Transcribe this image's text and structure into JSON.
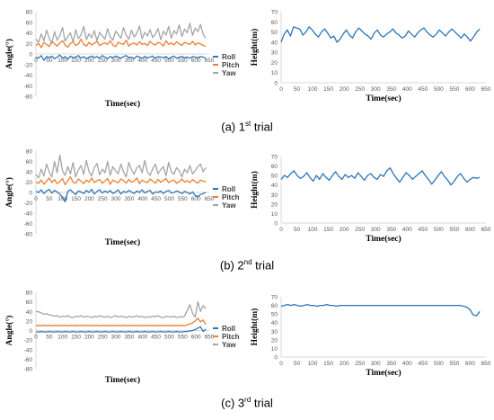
{
  "colors": {
    "roll": "#2E75B6",
    "pitch": "#ED7D31",
    "yaw": "#A5A5A5",
    "height": "#2E75B6",
    "axis": "#D9D9D9",
    "text": "#000000"
  },
  "captions": [
    {
      "label": "(a) 1",
      "sup": "st",
      "rest": " trial"
    },
    {
      "label": "(b) 2",
      "sup": "nd",
      "rest": " trial"
    },
    {
      "label": "(c) 3",
      "sup": "rd",
      "rest": " trial"
    }
  ],
  "chart_data": [
    {
      "id": "angle-1",
      "type": "line",
      "xlabel": "Time(sec)",
      "ylabel": "Angle(°)",
      "xlim": [
        0,
        650
      ],
      "ylim": [
        -80,
        80
      ],
      "xticks": [
        "0",
        "50",
        "100",
        "150",
        "200",
        "250",
        "300",
        "350",
        "400",
        "450",
        "500",
        "550",
        "600",
        "650"
      ],
      "yticks": [
        "80",
        "60",
        "40",
        "20",
        "0",
        "-20",
        "-40",
        "-60",
        "-80"
      ],
      "legend": [
        "Roll",
        "Pitch",
        "Yaw"
      ],
      "series": [
        {
          "name": "Roll",
          "values": [
            -6,
            -8,
            -3,
            -12,
            -5,
            -7,
            -4,
            -9,
            -6,
            -2,
            -8,
            -5,
            -10,
            -4,
            -7,
            -6,
            -3,
            -8,
            -5,
            -9,
            -6,
            -4,
            -7,
            -5,
            -8,
            -3,
            -6,
            -9,
            -5,
            -7,
            -4,
            -6,
            -8,
            -5,
            -3,
            -7,
            -6,
            -9,
            -4,
            -6,
            -8,
            -5,
            -7,
            -6,
            -4,
            -8,
            -5,
            -6,
            -7,
            -5,
            -9,
            -6,
            -4,
            -8,
            -6,
            -5,
            -7,
            -6,
            -8,
            -5,
            -6,
            -7,
            -5,
            -6,
            -8
          ]
        },
        {
          "name": "Pitch",
          "values": [
            16,
            20,
            12,
            22,
            18,
            14,
            24,
            19,
            15,
            21,
            25,
            17,
            13,
            20,
            23,
            16,
            19,
            28,
            18,
            15,
            22,
            17,
            20,
            24,
            16,
            19,
            21,
            18,
            25,
            17,
            14,
            22,
            20,
            18,
            26,
            15,
            19,
            21,
            17,
            23,
            18,
            20,
            16,
            24,
            19,
            17,
            22,
            20,
            15,
            25,
            18,
            21,
            17,
            23,
            19,
            16,
            22,
            20,
            18,
            24,
            17,
            21,
            19,
            16,
            14
          ]
        },
        {
          "name": "Yaw",
          "values": [
            28,
            22,
            38,
            25,
            45,
            30,
            20,
            42,
            26,
            35,
            50,
            24,
            33,
            40,
            22,
            46,
            29,
            36,
            52,
            27,
            38,
            31,
            44,
            25,
            41,
            34,
            28,
            48,
            32,
            26,
            43,
            37,
            30,
            50,
            35,
            28,
            45,
            32,
            39,
            53,
            29,
            41,
            34,
            46,
            31,
            38,
            48,
            27,
            43,
            36,
            52,
            30,
            44,
            38,
            55,
            33,
            47,
            40,
            58,
            35,
            49,
            42,
            56,
            37,
            30
          ]
        }
      ]
    },
    {
      "id": "height-1",
      "type": "line",
      "xlabel": "Time(sec)",
      "ylabel": "Height(m)",
      "xlim": [
        0,
        650
      ],
      "ylim": [
        0,
        70
      ],
      "xticks": [
        "0",
        "50",
        "100",
        "150",
        "200",
        "250",
        "300",
        "350",
        "400",
        "450",
        "500",
        "550",
        "600",
        "650"
      ],
      "yticks": [
        "70",
        "60",
        "50",
        "40",
        "30",
        "20",
        "10",
        "0"
      ],
      "series": [
        {
          "name": "",
          "values": [
            40,
            48,
            52,
            46,
            55,
            54,
            53,
            47,
            50,
            55,
            52,
            48,
            45,
            50,
            53,
            49,
            44,
            46,
            40,
            43,
            48,
            52,
            47,
            44,
            50,
            54,
            51,
            48,
            46,
            43,
            49,
            52,
            47,
            45,
            48,
            50,
            53,
            49,
            47,
            44,
            46,
            51,
            48,
            45,
            49,
            52,
            54,
            50,
            47,
            45,
            48,
            52,
            49,
            46,
            50,
            53,
            50,
            47,
            44,
            48,
            45,
            41,
            45,
            50,
            53
          ]
        }
      ]
    },
    {
      "id": "angle-2",
      "type": "line",
      "xlabel": "Time(sec)",
      "ylabel": "Angle(°)",
      "xlim": [
        0,
        650
      ],
      "ylim": [
        -80,
        80
      ],
      "xticks": [
        "0",
        "50",
        "100",
        "150",
        "200",
        "250",
        "300",
        "350",
        "400",
        "450",
        "500",
        "550",
        "600",
        "650"
      ],
      "yticks": [
        "80",
        "60",
        "40",
        "20",
        "0",
        "-20",
        "-40",
        "-60",
        "-80"
      ],
      "legend": [
        "Roll",
        "Pitch",
        "Yaw"
      ],
      "series": [
        {
          "name": "Roll",
          "values": [
            2,
            0,
            5,
            -2,
            3,
            6,
            -1,
            4,
            1,
            -3,
            -10,
            -18,
            2,
            5,
            0,
            -4,
            3,
            1,
            -2,
            4,
            0,
            6,
            -3,
            2,
            5,
            -1,
            3,
            0,
            4,
            -2,
            1,
            5,
            -3,
            2,
            0,
            4,
            1,
            -2,
            3,
            0,
            5,
            -1,
            2,
            4,
            -3,
            1,
            0,
            3,
            -2,
            2,
            4,
            -1,
            0,
            3,
            1,
            -2,
            2,
            0,
            -3,
            1,
            -6,
            -8,
            -4,
            -2,
            0
          ]
        },
        {
          "name": "Pitch",
          "values": [
            20,
            18,
            24,
            16,
            22,
            28,
            19,
            25,
            17,
            21,
            27,
            15,
            23,
            30,
            20,
            18,
            26,
            22,
            17,
            24,
            20,
            28,
            19,
            23,
            25,
            18,
            22,
            27,
            16,
            24,
            21,
            19,
            26,
            23,
            18,
            25,
            20,
            22,
            28,
            17,
            24,
            21,
            19,
            26,
            22,
            18,
            25,
            20,
            23,
            27,
            19,
            22,
            24,
            18,
            21,
            26,
            20,
            23,
            19,
            25,
            21,
            18,
            24,
            22,
            20
          ]
        },
        {
          "name": "Yaw",
          "values": [
            35,
            28,
            45,
            32,
            55,
            40,
            30,
            60,
            38,
            72,
            42,
            33,
            50,
            36,
            58,
            30,
            44,
            52,
            35,
            62,
            40,
            32,
            48,
            56,
            34,
            45,
            38,
            60,
            33,
            50,
            42,
            36,
            55,
            40,
            30,
            58,
            44,
            35,
            48,
            52,
            38,
            62,
            40,
            33,
            46,
            55,
            36,
            44,
            50,
            32,
            58,
            40,
            35,
            48,
            42,
            30,
            45,
            38,
            52,
            36,
            42,
            50,
            55,
            40,
            48
          ]
        }
      ]
    },
    {
      "id": "height-2",
      "type": "line",
      "xlabel": "Time(sec)",
      "ylabel": "Height(m)",
      "xlim": [
        0,
        650
      ],
      "ylim": [
        0,
        70
      ],
      "xticks": [
        "0",
        "50",
        "100",
        "150",
        "200",
        "250",
        "300",
        "350",
        "400",
        "450",
        "500",
        "550",
        "600",
        "650"
      ],
      "yticks": [
        "70",
        "60",
        "50",
        "40",
        "30",
        "20",
        "10",
        "0"
      ],
      "series": [
        {
          "name": "",
          "values": [
            46,
            50,
            48,
            52,
            55,
            50,
            47,
            49,
            53,
            48,
            44,
            50,
            46,
            52,
            48,
            45,
            50,
            54,
            49,
            46,
            51,
            48,
            50,
            47,
            53,
            49,
            45,
            50,
            52,
            48,
            46,
            51,
            49,
            55,
            58,
            52,
            47,
            43,
            48,
            53,
            50,
            46,
            49,
            52,
            55,
            50,
            46,
            41,
            45,
            50,
            54,
            49,
            45,
            40,
            44,
            49,
            52,
            47,
            43,
            46,
            48,
            47,
            48
          ]
        }
      ]
    },
    {
      "id": "angle-3",
      "type": "line",
      "xlabel": "Time(sec)",
      "ylabel": "Angle(°)",
      "xlim": [
        0,
        650
      ],
      "ylim": [
        -80,
        80
      ],
      "xticks": [
        "0",
        "50",
        "100",
        "150",
        "200",
        "250",
        "300",
        "350",
        "400",
        "450",
        "500",
        "550",
        "600",
        "650"
      ],
      "yticks": [
        "80",
        "60",
        "40",
        "20",
        "0",
        "-20",
        "-40",
        "-60",
        "-80"
      ],
      "legend": [
        "Roll",
        "Pitch",
        "Yaw"
      ],
      "series": [
        {
          "name": "Roll",
          "values": [
            -3,
            -3,
            -2,
            -3,
            -3,
            -2,
            -3,
            -3,
            -2,
            -3,
            -3,
            -2,
            -3,
            -3,
            -2,
            -3,
            -3,
            -2,
            -3,
            -3,
            -2,
            -3,
            -3,
            -2,
            -3,
            -3,
            -2,
            -3,
            -3,
            -2,
            -3,
            -3,
            -2,
            -3,
            -3,
            -2,
            -3,
            -3,
            -2,
            -3,
            -3,
            -2,
            -3,
            -3,
            -2,
            -3,
            -3,
            -2,
            -3,
            -3,
            -2,
            -3,
            -3,
            -2,
            -3,
            -3,
            -2,
            -2,
            -1,
            0,
            2,
            5,
            8,
            -2,
            3
          ]
        },
        {
          "name": "Pitch",
          "values": [
            10,
            11,
            10,
            11,
            10,
            11,
            10,
            11,
            10,
            11,
            10,
            11,
            10,
            11,
            10,
            11,
            10,
            11,
            10,
            11,
            10,
            11,
            10,
            11,
            10,
            11,
            10,
            11,
            10,
            11,
            10,
            11,
            10,
            11,
            10,
            11,
            10,
            11,
            10,
            11,
            10,
            11,
            10,
            11,
            10,
            11,
            10,
            11,
            10,
            11,
            10,
            11,
            10,
            11,
            10,
            11,
            10,
            12,
            14,
            16,
            20,
            26,
            18,
            22,
            12
          ]
        },
        {
          "name": "Yaw",
          "values": [
            40,
            39,
            37,
            34,
            35,
            33,
            32,
            30,
            31,
            28,
            30,
            29,
            31,
            28,
            27,
            30,
            29,
            31,
            28,
            30,
            29,
            27,
            30,
            28,
            31,
            29,
            28,
            30,
            27,
            29,
            31,
            28,
            30,
            29,
            27,
            30,
            28,
            29,
            31,
            28,
            30,
            27,
            29,
            28,
            30,
            29,
            31,
            28,
            27,
            30,
            29,
            28,
            30,
            27,
            29,
            28,
            30,
            42,
            54,
            36,
            28,
            60,
            40,
            52,
            46
          ]
        }
      ]
    },
    {
      "id": "height-3",
      "type": "line",
      "xlabel": "Time(sec)",
      "ylabel": "Height(m)",
      "xlim": [
        0,
        650
      ],
      "ylim": [
        0,
        70
      ],
      "xticks": [
        "0",
        "50",
        "100",
        "150",
        "200",
        "250",
        "300",
        "350",
        "400",
        "450",
        "500",
        "550",
        "600",
        "650"
      ],
      "yticks": [
        "70",
        "60",
        "50",
        "40",
        "30",
        "20",
        "10",
        "0"
      ],
      "series": [
        {
          "name": "",
          "values": [
            59,
            60,
            61,
            60,
            61,
            60,
            59,
            60,
            61,
            60,
            60,
            59,
            60,
            60,
            61,
            60,
            60,
            59,
            60,
            60,
            60,
            60,
            60,
            60,
            60,
            60,
            60,
            60,
            60,
            60,
            60,
            60,
            60,
            60,
            60,
            60,
            60,
            60,
            60,
            60,
            60,
            60,
            60,
            60,
            60,
            60,
            60,
            60,
            60,
            60,
            60,
            60,
            60,
            60,
            60,
            60,
            59,
            58,
            55,
            49,
            48,
            53
          ]
        }
      ]
    }
  ]
}
